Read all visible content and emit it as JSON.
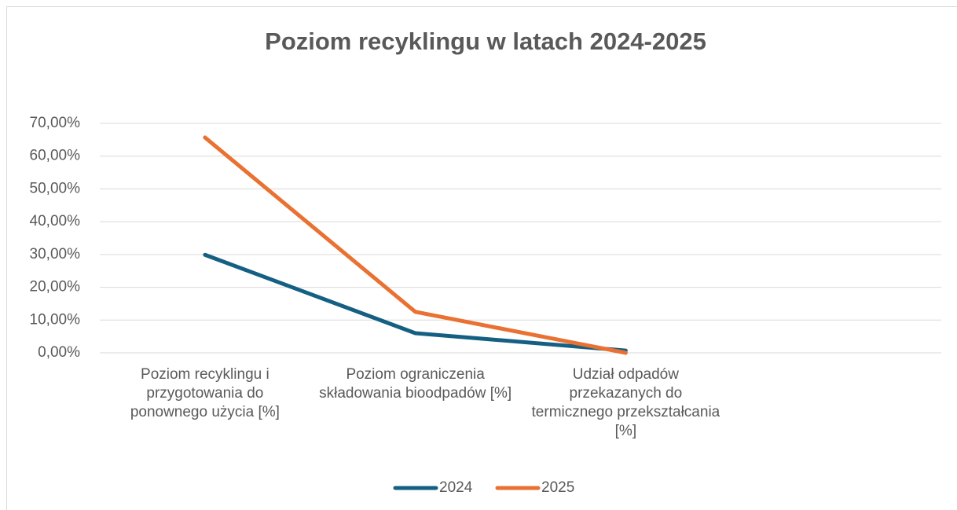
{
  "chart_data": {
    "type": "line",
    "title": "Poziom recyklingu  w latach 2024-2025",
    "categories": [
      "Poziom recyklingu i przygotowania do ponownego użycia [%]",
      "Poziom ograniczenia składowania bioodpadów [%]",
      "Udział odpadów przekazanych do termicznego przekształcania [%]",
      null
    ],
    "series": [
      {
        "name": "2024",
        "color": "#156082",
        "values": [
          29.9,
          6.0,
          0.7,
          null
        ]
      },
      {
        "name": "2025",
        "color": "#e97132",
        "values": [
          65.7,
          12.5,
          0.0,
          null
        ]
      }
    ],
    "ylim": [
      0,
      70
    ],
    "yticks": [
      {
        "value": 0,
        "label": "0,00%"
      },
      {
        "value": 10,
        "label": "10,00%"
      },
      {
        "value": 20,
        "label": "20,00%"
      },
      {
        "value": 30,
        "label": "30,00%"
      },
      {
        "value": 40,
        "label": "40,00%"
      },
      {
        "value": 50,
        "label": "50,00%"
      },
      {
        "value": 60,
        "label": "60,00%"
      },
      {
        "value": 70,
        "label": "70,00%"
      }
    ],
    "grid": true,
    "legend": "bottom"
  }
}
